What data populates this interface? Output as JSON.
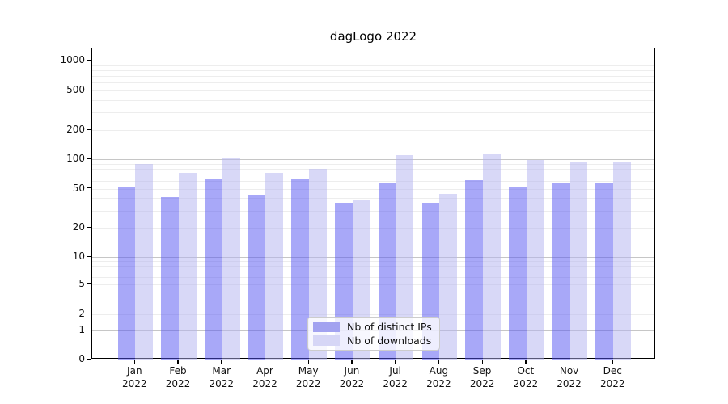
{
  "chart_data": {
    "type": "bar",
    "title": "dagLogo 2022",
    "categories": [
      "Jan",
      "Feb",
      "Mar",
      "Apr",
      "May",
      "Jun",
      "Jul",
      "Aug",
      "Sep",
      "Oct",
      "Nov",
      "Dec"
    ],
    "x_year": "2022",
    "series": [
      {
        "name": "Nb of distinct IPs",
        "bar_color": "rgba(81,81,241,0.5)",
        "legend_color": "#a2a2f0",
        "values": [
          51,
          41,
          63,
          43,
          64,
          36,
          58,
          36,
          61,
          51,
          58,
          58
        ]
      },
      {
        "name": "Nb of downloads",
        "bar_color": "rgba(177,177,239,0.5)",
        "legend_color": "#d6d6f6",
        "values": [
          90,
          73,
          103,
          72,
          80,
          38,
          110,
          44,
          112,
          99,
          95,
          92
        ]
      }
    ],
    "y_ticks": [
      0,
      1,
      2,
      5,
      10,
      20,
      50,
      100,
      200,
      500,
      1000
    ],
    "axis_scale": "log-like with 0 baseline",
    "ylim": [
      0,
      1000
    ],
    "grid": "on",
    "legend_position": "bottom-center",
    "major_grid_values": [
      1,
      10,
      100,
      1000
    ],
    "minor_grid_color": "#ededed",
    "major_grid_color": "#c6c6c6"
  }
}
